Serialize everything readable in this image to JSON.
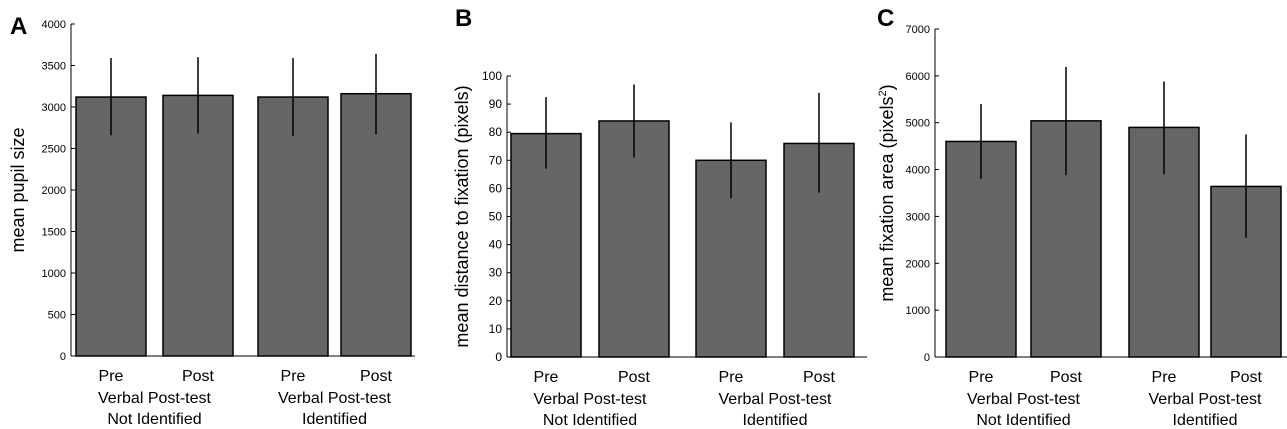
{
  "chart_data": [
    {
      "panel_label": "A",
      "type": "bar",
      "ylabel": "mean pupil size",
      "ylim": [
        0,
        4000
      ],
      "yticks": [
        0,
        500,
        1000,
        1500,
        2000,
        2500,
        3000,
        3500,
        4000
      ],
      "bar_color": "#666666",
      "categories": [
        "Pre",
        "Post",
        "Pre",
        "Post"
      ],
      "groups": [
        "Verbal Post-test\nNot Identified",
        "Verbal Post-test\nIdentified"
      ],
      "values": [
        3120,
        3140,
        3120,
        3160
      ],
      "error_low": [
        2660,
        2680,
        2650,
        2670
      ],
      "error_high": [
        3590,
        3600,
        3590,
        3640
      ]
    },
    {
      "panel_label": "B",
      "type": "bar",
      "ylabel": "mean distance to fixation (pixels)",
      "ylim": [
        0,
        100
      ],
      "yticks": [
        0,
        10,
        20,
        30,
        40,
        50,
        60,
        70,
        80,
        90,
        100
      ],
      "bar_color": "#666666",
      "categories": [
        "Pre",
        "Post",
        "Pre",
        "Post"
      ],
      "groups": [
        "Verbal Post-test\nNot Identified",
        "Verbal Post-test\nIdentified"
      ],
      "values": [
        79.5,
        84,
        70,
        76
      ],
      "error_low": [
        67,
        71,
        56.5,
        58.5
      ],
      "error_high": [
        92.5,
        97,
        83.5,
        94
      ]
    },
    {
      "panel_label": "C",
      "type": "bar",
      "ylabel": "mean fixation area (pixels²)",
      "ylim": [
        0,
        7000
      ],
      "yticks": [
        0,
        1000,
        2000,
        3000,
        4000,
        5000,
        6000,
        7000
      ],
      "bar_color": "#666666",
      "categories": [
        "Pre",
        "Post",
        "Pre",
        "Post"
      ],
      "groups": [
        "Verbal Post-test\nNot Identified",
        "Verbal Post-test\nIdentified"
      ],
      "values": [
        4600,
        5040,
        4900,
        3640
      ],
      "error_low": [
        3800,
        3880,
        3900,
        2540
      ],
      "error_high": [
        5400,
        6190,
        5880,
        4750
      ]
    }
  ]
}
